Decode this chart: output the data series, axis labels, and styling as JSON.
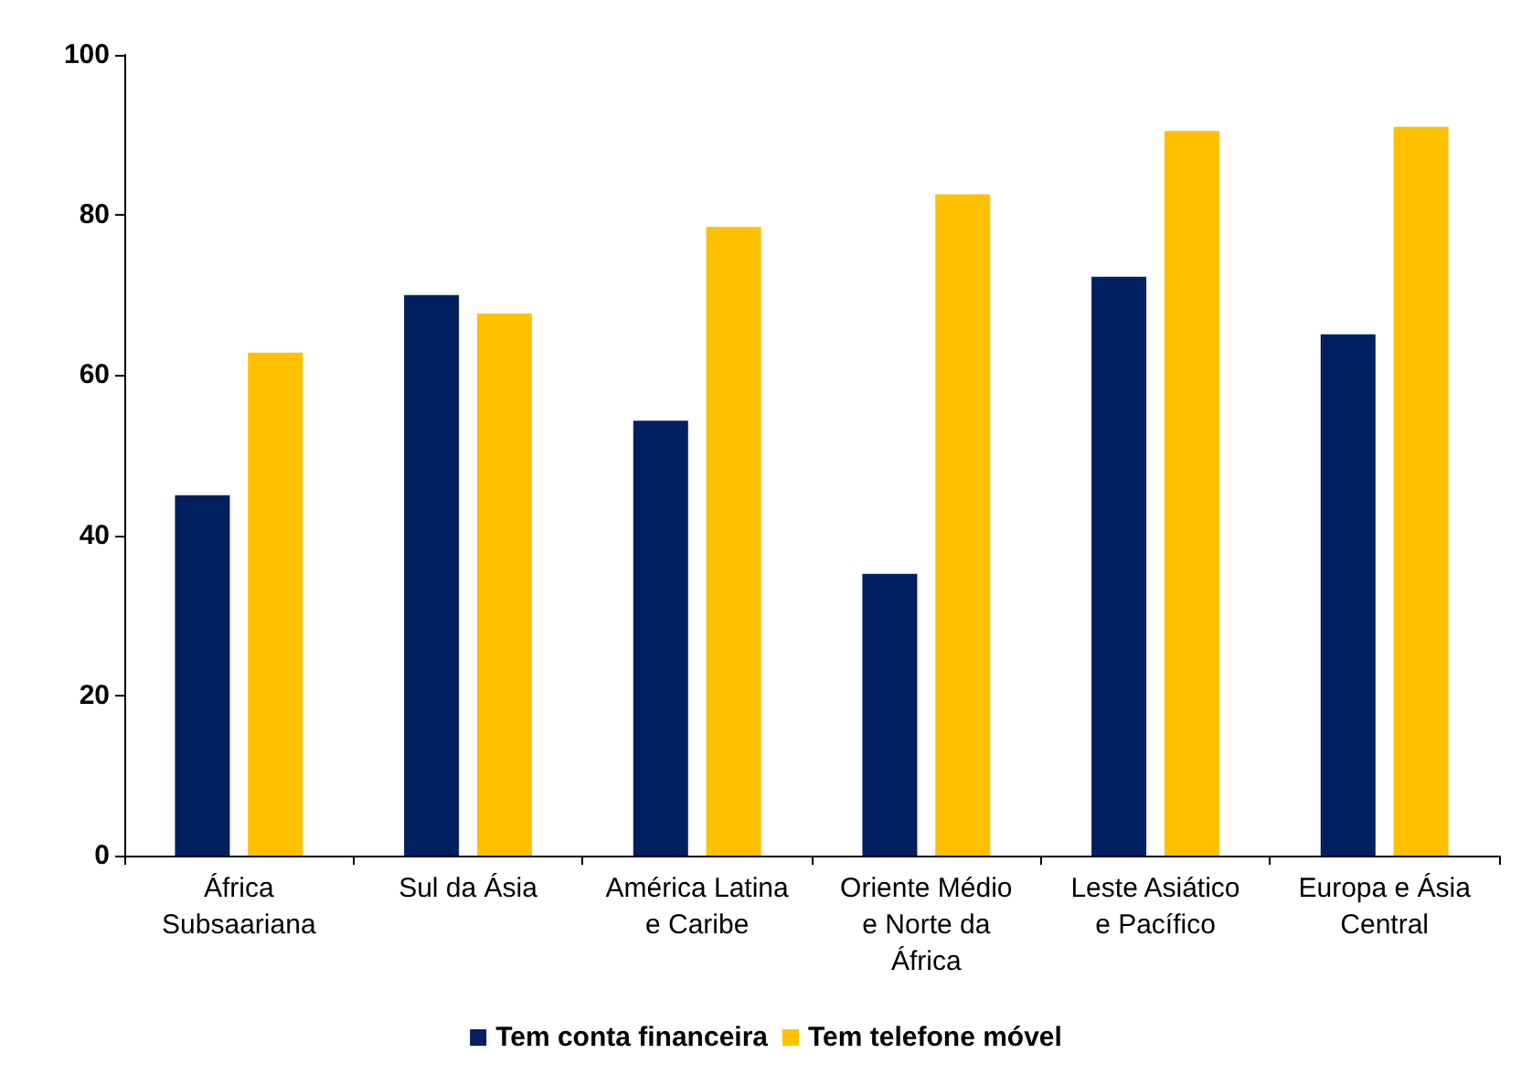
{
  "chart_data": {
    "type": "bar",
    "categories": [
      "África\nSubsaariana",
      "Sul da Ásia",
      "América Latina\ne Caribe",
      "Oriente Médio\ne Norte da\nÁfrica",
      "Leste Asiático\ne Pacífico",
      "Europa e Ásia\nCentral"
    ],
    "series": [
      {
        "name": "Tem conta financeira",
        "color": "#002060",
        "values": [
          45,
          70,
          54.3,
          35.2,
          72.3,
          65.1
        ]
      },
      {
        "name": "Tem telefone móvel",
        "color": "#ffc000",
        "values": [
          62.8,
          67.7,
          78.5,
          82.6,
          90.5,
          91
        ]
      }
    ],
    "ylim": [
      0,
      100
    ],
    "yticks": [
      0,
      20,
      40,
      60,
      80,
      100
    ],
    "grid": false,
    "legend": "bottom"
  }
}
